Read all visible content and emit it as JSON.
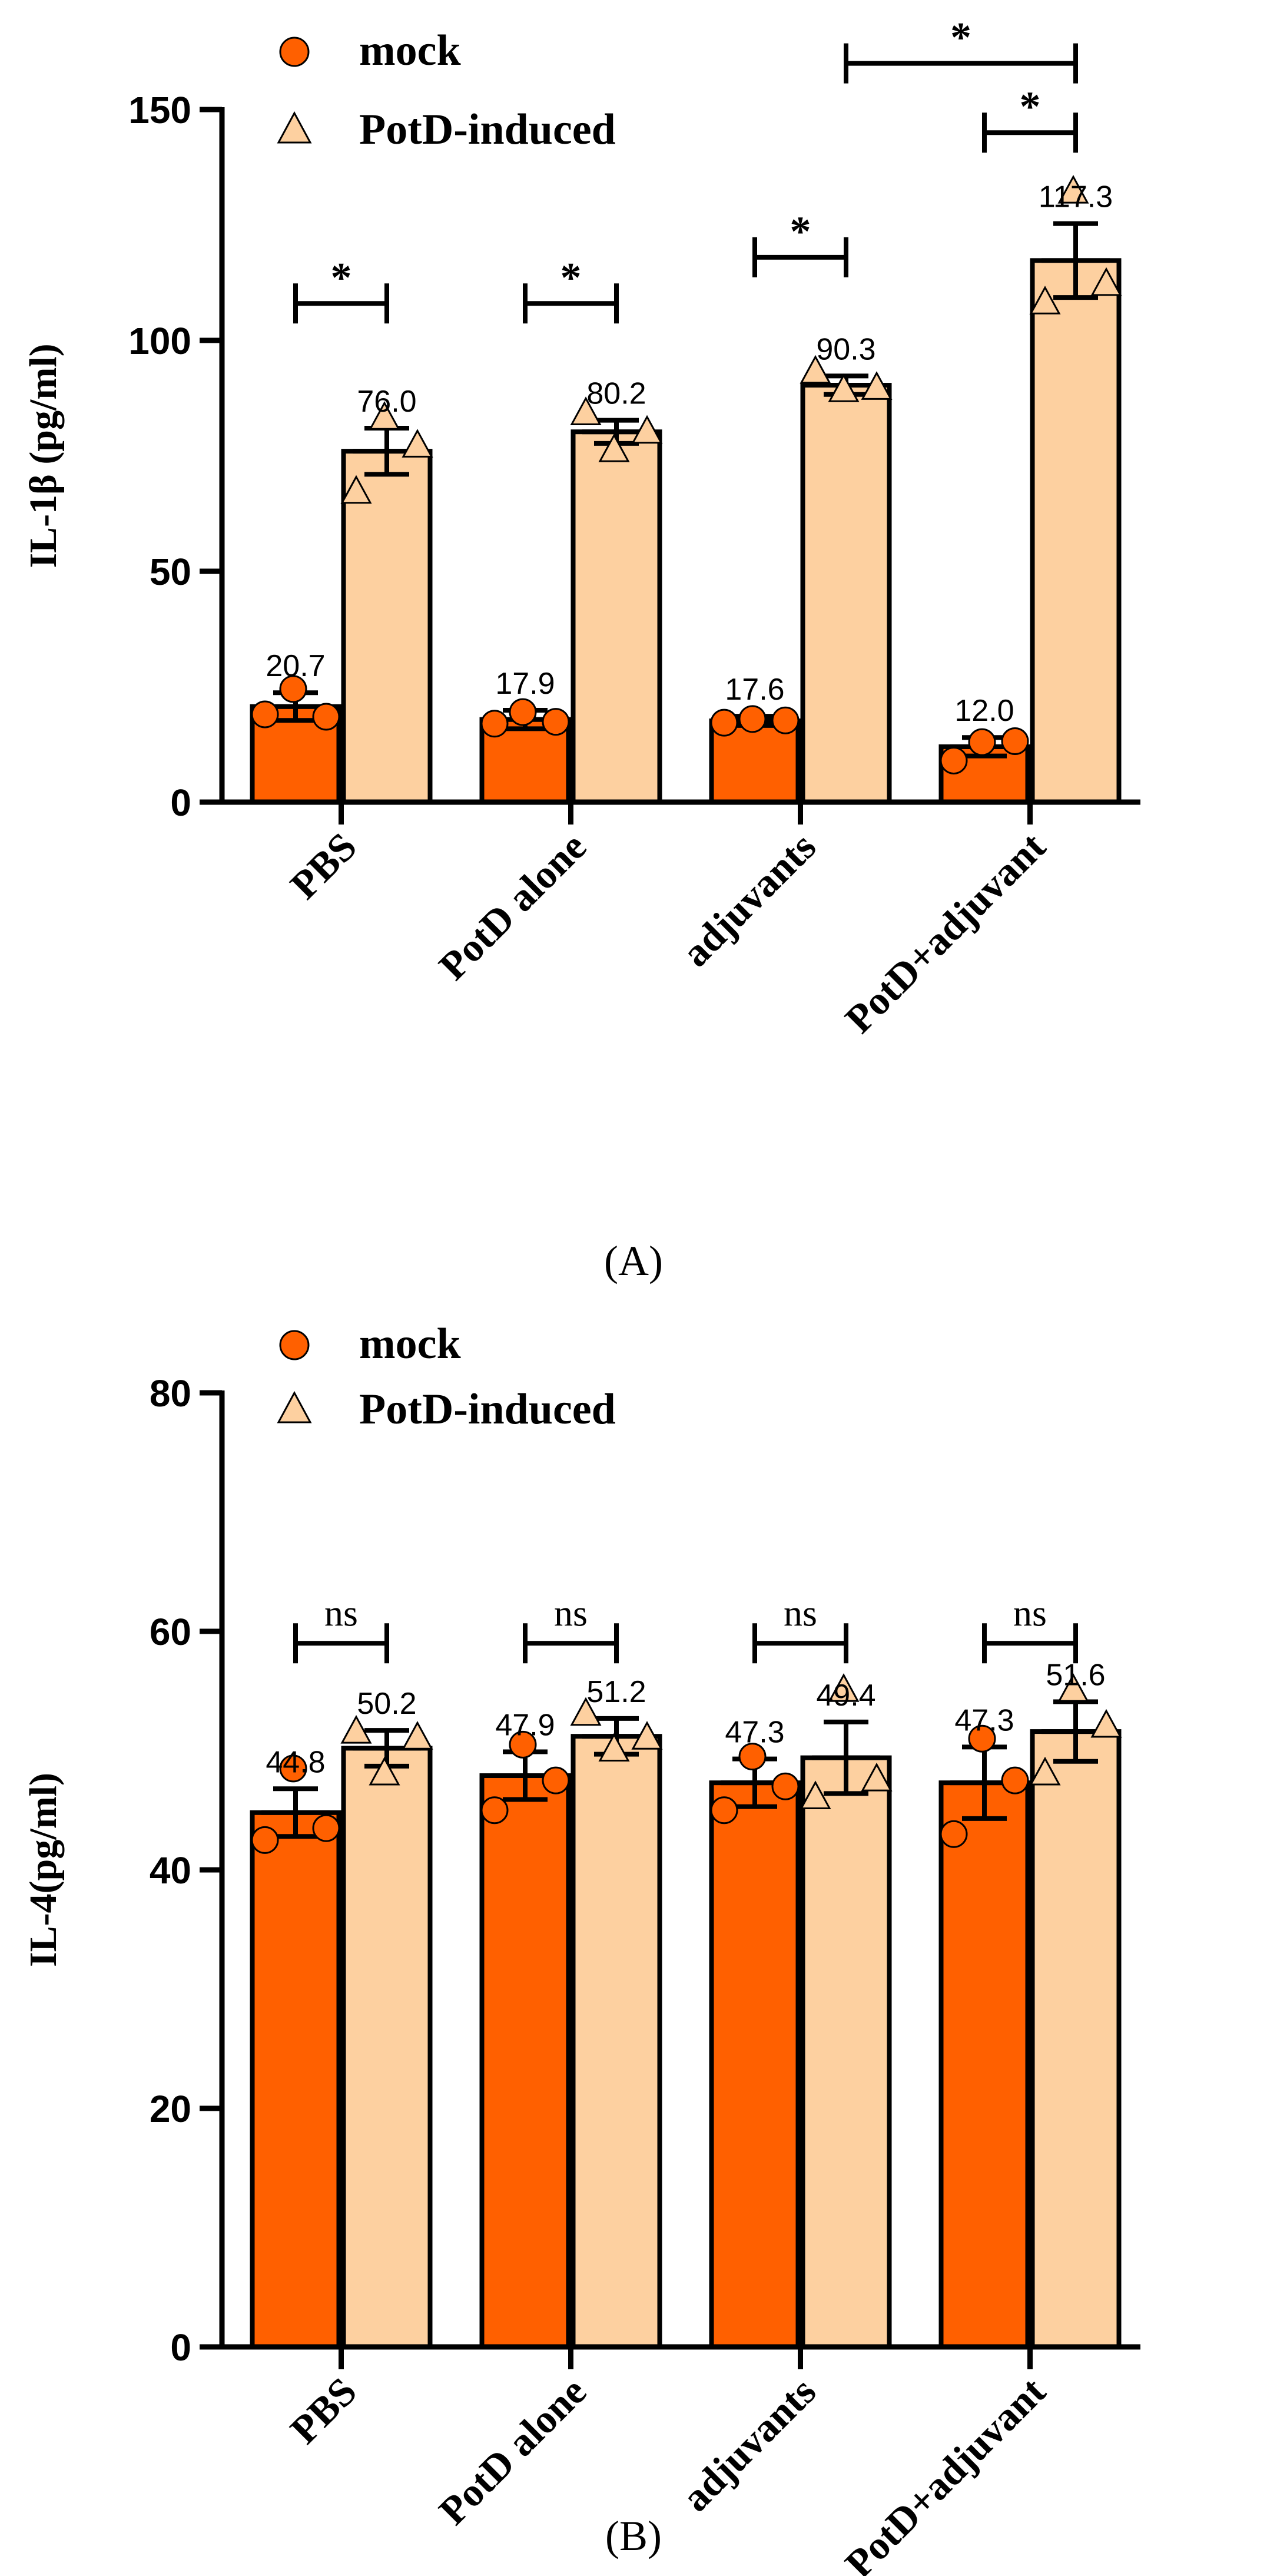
{
  "colors": {
    "mock": "#ff6000",
    "potd": "#fdd0a0",
    "stroke": "#000000",
    "background": "#ffffff"
  },
  "chart_data": [
    {
      "panel_label": "(A)",
      "type": "bar",
      "categories": [
        "PBS",
        "PotD alone",
        "adjuvants",
        "PotD+adjuvant"
      ],
      "series": [
        {
          "name": "mock",
          "marker": "circle",
          "values": [
            20.7,
            17.9,
            17.6,
            12.0
          ],
          "value_labels": [
            "20.7",
            "17.9",
            "17.6",
            "12.0"
          ],
          "sem": [
            3.0,
            2.0,
            1.0,
            2.0
          ],
          "points": [
            [
              24.5,
              19.0,
              18.5
            ],
            [
              19.5,
              17.0,
              17.4
            ],
            [
              18.0,
              17.2,
              17.7
            ],
            [
              13.0,
              9.0,
              13.2
            ]
          ]
        },
        {
          "name": "PotD-induced",
          "marker": "triangle",
          "values": [
            76.0,
            80.2,
            90.3,
            117.3
          ],
          "value_labels": [
            "76.0",
            "80.2",
            "90.3",
            "117.3"
          ],
          "sem": [
            5.0,
            2.5,
            2.0,
            8.0
          ],
          "points": [
            [
              83.0,
              67.0,
              77.0
            ],
            [
              76.0,
              84.0,
              80.0
            ],
            [
              89.0,
              93.0,
              89.5
            ],
            [
              132.0,
              108.0,
              112.0
            ]
          ]
        }
      ],
      "ylabel": "IL-1β (pg/ml)",
      "ylim": [
        0,
        150
      ],
      "yticks": [
        0,
        50,
        100,
        150
      ],
      "legend": {
        "position": "top-center",
        "entries": [
          "mock",
          "PotD-induced"
        ]
      },
      "significance": [
        {
          "from_group": 0,
          "from_series": 0,
          "to_group": 0,
          "to_series": 1,
          "level": 108,
          "label": "*"
        },
        {
          "from_group": 1,
          "from_series": 0,
          "to_group": 1,
          "to_series": 1,
          "level": 108,
          "label": "*"
        },
        {
          "from_group": 2,
          "from_series": 0,
          "to_group": 2,
          "to_series": 1,
          "level": 118,
          "label": "*"
        },
        {
          "from_group": 3,
          "from_series": 0,
          "to_group": 3,
          "to_series": 1,
          "level": 145,
          "label": "*"
        },
        {
          "from_group": 2,
          "from_series": 1,
          "to_group": 3,
          "to_series": 1,
          "level": 160,
          "label": "*"
        }
      ]
    },
    {
      "panel_label": "(B)",
      "type": "bar",
      "categories": [
        "PBS",
        "PotD alone",
        "adjuvants",
        "PotD+adjuvant"
      ],
      "series": [
        {
          "name": "mock",
          "marker": "circle",
          "values": [
            44.8,
            47.9,
            47.3,
            47.3
          ],
          "value_labels": [
            "44.8",
            "47.9",
            "47.3",
            "47.3"
          ],
          "sem": [
            2.0,
            2.0,
            2.0,
            3.0
          ],
          "points": [
            [
              48.5,
              42.5,
              43.5
            ],
            [
              50.5,
              45.0,
              47.5
            ],
            [
              49.5,
              45.0,
              47.0
            ],
            [
              51.0,
              43.0,
              47.5
            ]
          ]
        },
        {
          "name": "PotD-induced",
          "marker": "triangle",
          "values": [
            50.2,
            51.2,
            49.4,
            51.6
          ],
          "value_labels": [
            "50.2",
            "51.2",
            "49.4",
            "51.6"
          ],
          "sem": [
            1.5,
            1.5,
            3.0,
            2.5
          ],
          "points": [
            [
              48.0,
              51.5,
              51.0
            ],
            [
              50.0,
              53.0,
              51.0
            ],
            [
              55.0,
              46.0,
              47.5
            ],
            [
              55.0,
              48.0,
              52.0
            ]
          ]
        }
      ],
      "ylabel": "IL-4(pg/ml)",
      "ylim": [
        0,
        80
      ],
      "yticks": [
        0,
        20,
        40,
        60,
        80
      ],
      "legend": {
        "position": "top-center",
        "entries": [
          "mock",
          "PotD-induced"
        ]
      },
      "significance": [
        {
          "from_group": 0,
          "from_series": 0,
          "to_group": 0,
          "to_series": 1,
          "level": 59,
          "label": "ns"
        },
        {
          "from_group": 1,
          "from_series": 0,
          "to_group": 1,
          "to_series": 1,
          "level": 59,
          "label": "ns"
        },
        {
          "from_group": 2,
          "from_series": 0,
          "to_group": 2,
          "to_series": 1,
          "level": 59,
          "label": "ns"
        },
        {
          "from_group": 3,
          "from_series": 0,
          "to_group": 3,
          "to_series": 1,
          "level": 59,
          "label": "ns"
        }
      ]
    }
  ]
}
